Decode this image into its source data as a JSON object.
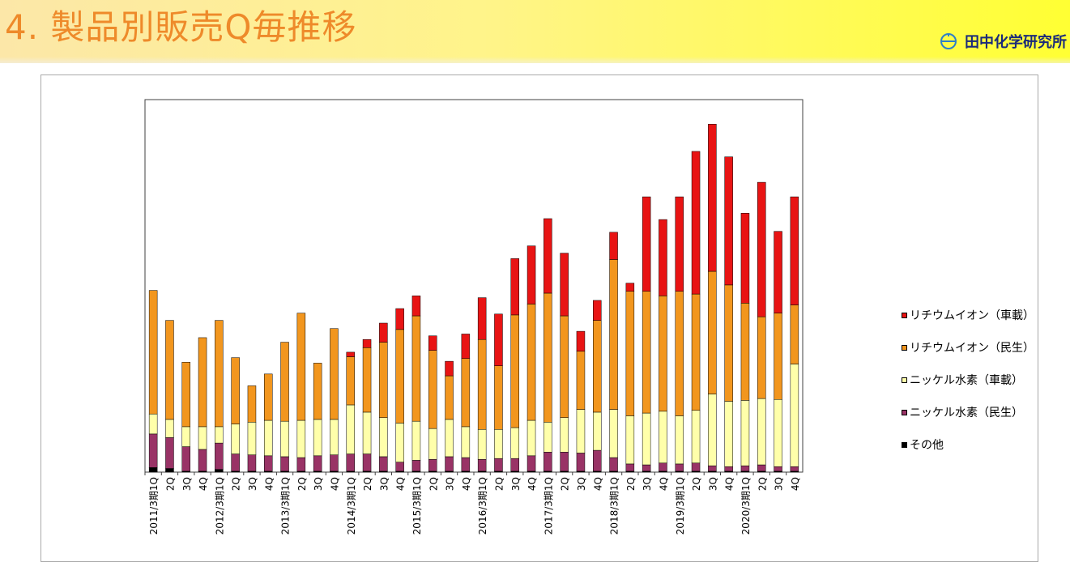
{
  "header": {
    "title": "4. 製品別販売Q毎推移",
    "logo_text": "田中化学研究所",
    "logo_icon": "company-logo-icon"
  },
  "colors": {
    "lithium_vehicle": "#e81414",
    "lithium_consumer": "#f2961e",
    "nickel_vehicle": "#ffffaa",
    "nickel_consumer": "#993366",
    "other": "#000000",
    "plot_border": "#404040",
    "title": "#ee8a2a"
  },
  "chart_data": {
    "type": "bar",
    "stacked": true,
    "title": "",
    "xlabel": "",
    "ylabel": "",
    "y_axis_labels_shown": false,
    "grid": false,
    "legend_position": "right",
    "categories": [
      "2011/3期1Q",
      "2Q",
      "3Q",
      "4Q",
      "2012/3期1Q",
      "2Q",
      "3Q",
      "4Q",
      "2013/3期1Q",
      "2Q",
      "3Q",
      "4Q",
      "2014/3期1Q",
      "2Q",
      "3Q",
      "4Q",
      "2015/3期1Q",
      "2Q",
      "3Q",
      "4Q",
      "2016/3期1Q",
      "2Q",
      "3Q",
      "4Q",
      "2017/3期1Q",
      "2Q",
      "3Q",
      "4Q",
      "2018/3期1Q",
      "2Q",
      "3Q",
      "4Q",
      "2019/3期1Q",
      "2Q",
      "3Q",
      "4Q",
      "2020/3期1Q",
      "2Q",
      "3Q",
      "4Q"
    ],
    "series": [
      {
        "name": "その他",
        "color": "#000000",
        "values": [
          5,
          4,
          1,
          1,
          3,
          1,
          1,
          1,
          1,
          1,
          1,
          1,
          1,
          1,
          1,
          1,
          1,
          1,
          1,
          1,
          1,
          1,
          1,
          1,
          1,
          1,
          1,
          1,
          1,
          1,
          1,
          1,
          1,
          1,
          1,
          1,
          1,
          1,
          1,
          1
        ]
      },
      {
        "name": "ニッケル水素（民生）",
        "color": "#993366",
        "values": [
          37,
          34,
          27,
          24,
          29,
          19,
          18,
          17,
          16,
          15,
          17,
          18,
          19,
          19,
          16,
          10,
          12,
          13,
          16,
          15,
          13,
          14,
          14,
          17,
          21,
          21,
          20,
          23,
          15,
          8,
          7,
          9,
          8,
          9,
          6,
          5,
          6,
          7,
          5,
          5
        ]
      },
      {
        "name": "ニッケル水素（車載）",
        "color": "#ffffaa",
        "values": [
          22,
          20,
          22,
          25,
          18,
          33,
          36,
          39,
          39,
          41,
          40,
          39,
          54,
          46,
          43,
          43,
          43,
          34,
          41,
          34,
          33,
          32,
          34,
          39,
          33,
          38,
          48,
          42,
          53,
          53,
          57,
          57,
          53,
          58,
          79,
          72,
          72,
          73,
          74,
          113
        ]
      },
      {
        "name": "リチウムイオン（民生）",
        "color": "#f2961e",
        "values": [
          136,
          109,
          71,
          98,
          117,
          73,
          40,
          51,
          87,
          118,
          62,
          100,
          53,
          71,
          83,
          103,
          116,
          86,
          48,
          75,
          99,
          70,
          124,
          128,
          142,
          112,
          64,
          101,
          165,
          137,
          134,
          127,
          137,
          128,
          135,
          128,
          107,
          90,
          95,
          65
        ]
      },
      {
        "name": "リチウムイオン（車載）",
        "color": "#e81414",
        "values": [
          0,
          0,
          0,
          0,
          0,
          0,
          0,
          0,
          0,
          0,
          0,
          0,
          5,
          9,
          21,
          23,
          22,
          16,
          16,
          27,
          46,
          57,
          62,
          64,
          82,
          69,
          22,
          22,
          30,
          9,
          104,
          84,
          104,
          157,
          162,
          141,
          99,
          148,
          90,
          119
        ]
      }
    ],
    "legend_order": [
      "リチウムイオン（車載）",
      "リチウムイオン（民生）",
      "ニッケル水素（車載）",
      "ニッケル水素（民生）",
      "その他"
    ],
    "ylim": [
      0,
      410
    ]
  }
}
